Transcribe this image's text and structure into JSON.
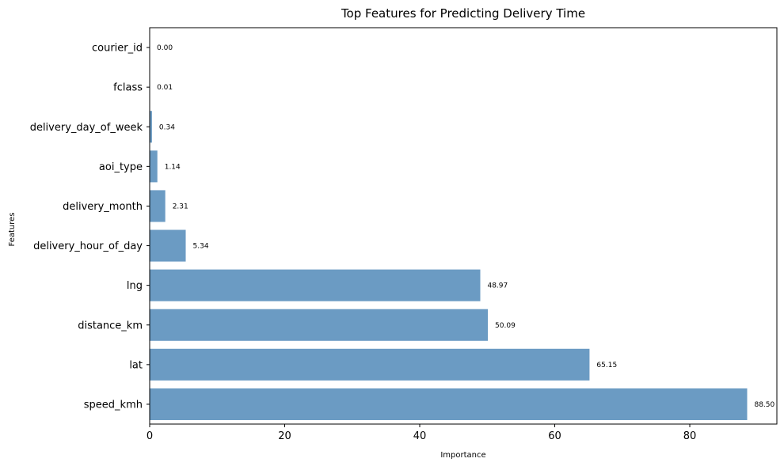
{
  "chart_data": {
    "type": "bar",
    "orientation": "horizontal",
    "title": "Top Features for Predicting Delivery Time",
    "xlabel": "Importance",
    "ylabel": "Features",
    "categories": [
      "speed_kmh",
      "lat",
      "distance_km",
      "lng",
      "delivery_hour_of_day",
      "delivery_month",
      "aoi_type",
      "delivery_day_of_week",
      "fclass",
      "courier_id"
    ],
    "values": [
      88.5,
      65.15,
      50.09,
      48.97,
      5.34,
      2.31,
      1.14,
      0.34,
      0.01,
      0.0
    ],
    "value_labels": [
      "88.50",
      "65.15",
      "50.09",
      "48.97",
      "5.34",
      "2.31",
      "1.14",
      "0.34",
      "0.01",
      "0.00"
    ],
    "xlim": [
      0,
      92.9
    ],
    "xticks": [
      0,
      20,
      40,
      60,
      80
    ],
    "grid": false,
    "bar_color": "#6b9bc3"
  }
}
